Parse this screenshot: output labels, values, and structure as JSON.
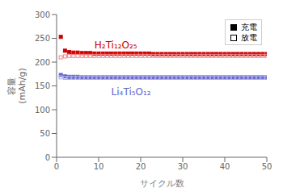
{
  "chart_data": {
    "type": "scatter",
    "xlabel": "サイクル数",
    "ylabel": "容量\n(mAh/g)",
    "xlim": [
      0,
      50
    ],
    "ylim": [
      0,
      300
    ],
    "xticks": [
      0,
      10,
      20,
      30,
      40,
      50
    ],
    "yticks": [
      0,
      50,
      100,
      150,
      200,
      250,
      300
    ],
    "grid": false,
    "legend": "upper right",
    "x": [
      1,
      2,
      3,
      4,
      5,
      6,
      7,
      8,
      9,
      10,
      11,
      12,
      13,
      14,
      15,
      16,
      17,
      18,
      19,
      20,
      21,
      22,
      23,
      24,
      25,
      26,
      27,
      28,
      29,
      30,
      31,
      32,
      33,
      34,
      35,
      36,
      37,
      38,
      39,
      40,
      41,
      42,
      43,
      44,
      45,
      46,
      47,
      48,
      49,
      50
    ],
    "series": [
      {
        "name": "充電",
        "color": "#cc0000",
        "marker": "square",
        "values": [
          253,
          224,
          221,
          220,
          220,
          219,
          219,
          219,
          218,
          218,
          218,
          218,
          218,
          218,
          218,
          218,
          218,
          218,
          218,
          218,
          218,
          218,
          217,
          217,
          217,
          217,
          217,
          217,
          217,
          217,
          217,
          217,
          217,
          217,
          217,
          217,
          217,
          217,
          217,
          217,
          217,
          217,
          217,
          217,
          217,
          217,
          217,
          217,
          217,
          217
        ]
      },
      {
        "name": "放電",
        "color": "#ee8888",
        "marker": "open_square",
        "values": [
          210,
          212,
          213,
          213,
          213,
          213,
          213,
          213,
          213,
          213,
          213,
          213,
          213,
          213,
          213,
          213,
          213,
          213,
          213,
          213,
          213,
          213,
          213,
          213,
          213,
          213,
          213,
          213,
          213,
          213,
          213,
          213,
          213,
          213,
          213,
          213,
          213,
          213,
          213,
          213,
          213,
          213,
          213,
          213,
          213,
          213,
          213,
          213,
          213,
          213
        ]
      },
      {
        "name": "充電",
        "color": "#6666cc",
        "marker": "square",
        "values": [
          173,
          170,
          169,
          169,
          169,
          168,
          168,
          168,
          168,
          168,
          168,
          168,
          168,
          168,
          168,
          168,
          168,
          168,
          168,
          168,
          168,
          168,
          168,
          168,
          168,
          168,
          168,
          168,
          168,
          168,
          168,
          168,
          168,
          168,
          168,
          168,
          168,
          168,
          168,
          168,
          168,
          168,
          168,
          168,
          168,
          168,
          168,
          168,
          168,
          168
        ]
      },
      {
        "name": "放電",
        "color": "#aaaaee",
        "marker": "open_square",
        "values": [
          168,
          167,
          167,
          167,
          167,
          167,
          167,
          167,
          167,
          167,
          167,
          167,
          167,
          167,
          167,
          167,
          167,
          167,
          167,
          167,
          167,
          167,
          167,
          167,
          167,
          167,
          167,
          167,
          167,
          167,
          167,
          167,
          167,
          167,
          167,
          167,
          167,
          167,
          167,
          167,
          167,
          167,
          167,
          167,
          167,
          167,
          167,
          167,
          167,
          167
        ]
      }
    ],
    "annotations": [
      {
        "text": "H₂Ti₁₂O₂₅",
        "x": 9,
        "y": 236,
        "color": "#cc0000"
      },
      {
        "text": "Li₄Ti₅O₁₂",
        "x": 13,
        "y": 138,
        "color": "#6666cc"
      }
    ]
  }
}
